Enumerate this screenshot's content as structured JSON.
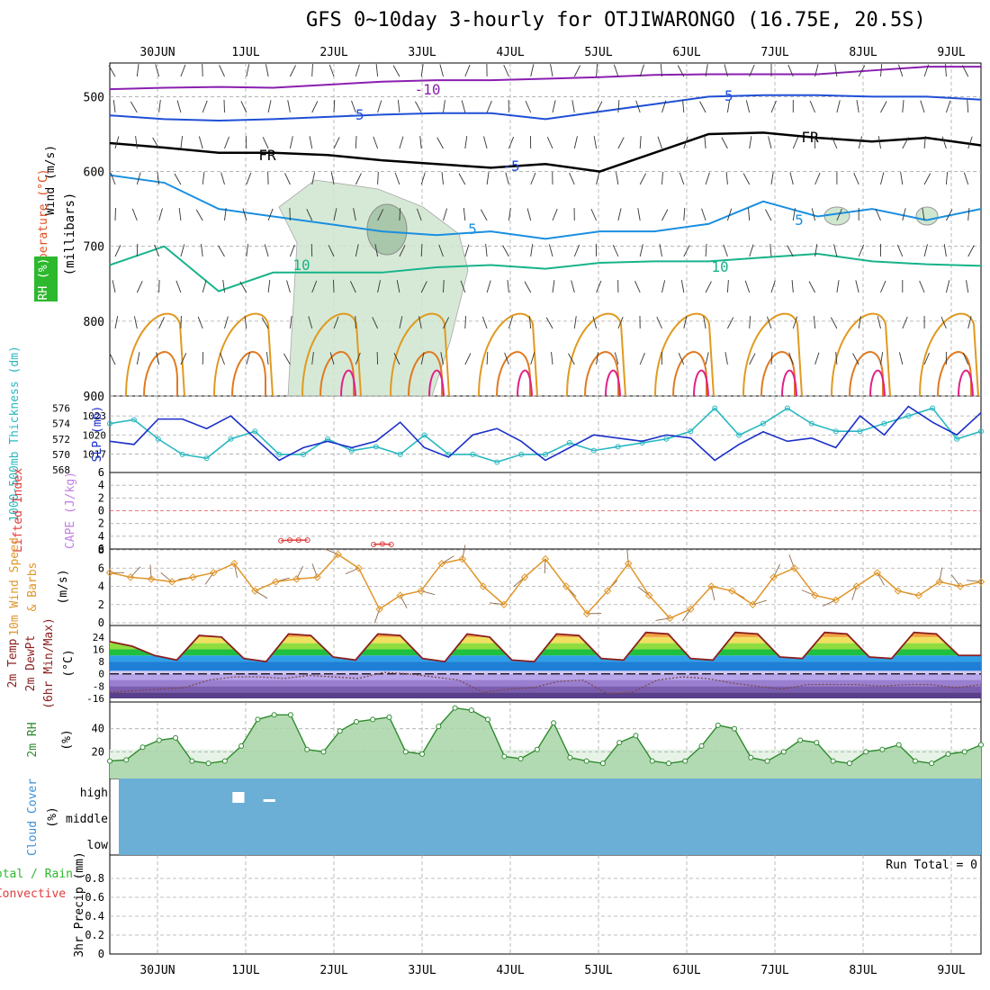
{
  "title": "GFS 0~10day 3-hourly for OTJIWARONGO (16.75E, 20.5S)",
  "date_labels": [
    "30JUN",
    "1JUL",
    "2JUL",
    "3JUL",
    "4JUL",
    "5JUL",
    "6JUL",
    "7JUL",
    "8JUL",
    "9JUL"
  ],
  "colors": {
    "grid": "#aaaaaa",
    "wind_barb": "#333333",
    "rh_fill": "#cfe6cf",
    "temp_neg10": "#8a1fb0",
    "temp_neg5": "#1f4fd6",
    "temp_fr": "#000000",
    "temp_5": "#1a8fe0",
    "temp_10": "#17b38a",
    "temp_15": "#e09a20",
    "temp_20": "#e07a20",
    "temp_25": "#e0208a",
    "slp": "#1a2fc8",
    "thickness": "#29b8c0",
    "lifted_index": "#e03c3c",
    "wind10m": "#e0962a",
    "temp2m": "#8b1f1f",
    "dewpt2m": "#7a4a4a",
    "rh2m": "#2e8b2e",
    "cloud": "#6baed6"
  },
  "chart_data": [
    {
      "type": "line",
      "panel": "upper-air",
      "ylabel": [
        "Wind (m/s)",
        "Temperature (°C)",
        "RH (%)",
        "(millibars)"
      ],
      "y_ticks": [
        500,
        600,
        700,
        800,
        900
      ],
      "ylim": [
        455,
        900
      ],
      "contour_labels": [
        "-10",
        "-5",
        "FR",
        "-5",
        "5",
        "10",
        "FR",
        "-5",
        "5",
        "10"
      ],
      "levels": [
        {
          "name": "-10",
          "series": [
            490,
            488,
            487,
            488,
            484,
            480,
            478,
            478,
            476,
            474,
            471,
            470,
            470,
            470,
            465,
            460,
            460
          ]
        },
        {
          "name": "-5",
          "series": [
            525,
            530,
            532,
            530,
            527,
            524,
            522,
            522,
            530,
            520,
            510,
            500,
            498,
            498,
            500,
            500,
            504
          ]
        },
        {
          "name": "FR",
          "series": [
            562,
            568,
            575,
            575,
            578,
            585,
            590,
            595,
            590,
            600,
            575,
            550,
            548,
            555,
            560,
            555,
            565
          ]
        },
        {
          "name": "5",
          "series": [
            605,
            615,
            650,
            660,
            670,
            680,
            685,
            680,
            690,
            680,
            680,
            670,
            640,
            660,
            650,
            665,
            650
          ]
        },
        {
          "name": "10",
          "series": [
            725,
            700,
            760,
            735,
            735,
            735,
            728,
            725,
            730,
            722,
            720,
            720,
            715,
            710,
            720,
            724,
            726
          ]
        }
      ]
    },
    {
      "type": "line",
      "panel": "slp-thickness",
      "ylabel": [
        "1000-500mb Thickness (dm)",
        "SLP (mb)"
      ],
      "thickness_ticks": [
        568,
        570,
        572,
        574,
        576
      ],
      "slp_ticks": [
        1017,
        1020,
        1023
      ],
      "series": [
        {
          "name": "SLP (mb)",
          "values": [
            1019.0,
            1018.5,
            1022.5,
            1022.5,
            1021.0,
            1023.0,
            1019.5,
            1016.0,
            1018.0,
            1019.0,
            1018.0,
            1019.0,
            1022.0,
            1018.0,
            1016.5,
            1020.0,
            1021.0,
            1019.0,
            1016.0,
            1018.0,
            1020.0,
            1019.5,
            1019.0,
            1020.0,
            1019.5,
            1016.0,
            1018.5,
            1020.5,
            1019.0,
            1019.5,
            1018.0,
            1023.0,
            1020.0,
            1024.5,
            1022.0,
            1020.0,
            1023.5
          ]
        },
        {
          "name": "1000-500mb Thickness (dm)",
          "values": [
            574.0,
            574.5,
            572.0,
            570.0,
            569.5,
            572.0,
            573.0,
            570.0,
            570.0,
            572.0,
            570.5,
            571.0,
            570.0,
            572.5,
            570.0,
            570.0,
            569.0,
            570.0,
            570.0,
            571.5,
            570.5,
            571.0,
            571.5,
            572.0,
            573.0,
            576.0,
            572.5,
            574.0,
            576.0,
            574.0,
            573.0,
            573.0,
            574.0,
            575.0,
            576.0,
            572.0,
            573.0
          ]
        }
      ]
    },
    {
      "type": "line",
      "panel": "lifted-index",
      "ylabel": [
        "Lifted Index",
        "CAPE (J/kg)"
      ],
      "y_ticks": [
        -6,
        -4,
        -2,
        0,
        2,
        4,
        6
      ],
      "ylim": [
        -6,
        6
      ],
      "series": [
        {
          "name": "Lifted Index",
          "x_days": [
            1.4,
            1.5,
            1.6,
            1.7
          ],
          "values": [
            4.7,
            4.6,
            4.6,
            4.6
          ]
        },
        {
          "name": "Lifted Index",
          "x_days": [
            2.45,
            2.55,
            2.65
          ],
          "values": [
            5.3,
            5.2,
            5.3
          ]
        }
      ]
    },
    {
      "type": "line",
      "panel": "wind-10m",
      "ylabel": [
        "10m Wind Speed",
        "& Barbs",
        "(m/s)"
      ],
      "y_ticks": [
        0,
        2,
        4,
        6,
        8
      ],
      "ylim": [
        0,
        8
      ],
      "series": [
        {
          "name": "10m Wind Speed",
          "values": [
            5.5,
            5.0,
            4.8,
            4.5,
            5.0,
            5.5,
            6.5,
            3.5,
            4.5,
            4.8,
            5.0,
            7.5,
            6.0,
            1.5,
            3.0,
            3.5,
            6.5,
            7.0,
            4.0,
            2.0,
            5.0,
            7.0,
            4.0,
            1.0,
            3.5,
            6.5,
            3.0,
            0.5,
            1.5,
            4.0,
            3.5,
            2.0,
            5.0,
            6.0,
            3.0,
            2.5,
            4.0,
            5.5,
            3.5,
            3.0,
            4.5,
            4.0,
            4.5
          ]
        }
      ]
    },
    {
      "type": "area",
      "panel": "temp-2m",
      "ylabel": [
        "2m Temp",
        "2m DewPt",
        "(6hr Min/Max)",
        "(°C)"
      ],
      "y_ticks": [
        -16,
        -8,
        0,
        8,
        16,
        24
      ],
      "ylim": [
        -16,
        28
      ],
      "series": [
        {
          "name": "2m Temp",
          "values": [
            21,
            18,
            12,
            9,
            25,
            24,
            10,
            8,
            26,
            25,
            11,
            9,
            26,
            25,
            10,
            8,
            26,
            24,
            9,
            8,
            26,
            25,
            10,
            9,
            27,
            26,
            10,
            9,
            27,
            26,
            11,
            10,
            27,
            26,
            11,
            10,
            27,
            26,
            12,
            12
          ]
        },
        {
          "name": "2m DewPt",
          "values": [
            -12,
            -11,
            -10,
            -9,
            -4,
            -2,
            -2,
            -3,
            -1,
            -2,
            -3,
            1,
            0,
            -2,
            -4,
            -12,
            -10,
            -9,
            -5,
            -4,
            -13,
            -12,
            -4,
            -2,
            -3,
            -6,
            -8,
            -10,
            -7,
            -7,
            -7,
            -8,
            -7,
            -7,
            -9,
            -7
          ]
        }
      ]
    },
    {
      "type": "area",
      "panel": "rh-2m",
      "ylabel": [
        "2m RH",
        "(%)"
      ],
      "y_ticks": [
        20,
        40
      ],
      "ylim": [
        0,
        60
      ],
      "series": [
        {
          "name": "2m RH",
          "values": [
            12,
            13,
            24,
            30,
            32,
            12,
            10,
            12,
            25,
            48,
            52,
            52,
            22,
            20,
            38,
            46,
            48,
            50,
            20,
            18,
            42,
            58,
            56,
            48,
            16,
            14,
            22,
            45,
            15,
            12,
            10,
            28,
            34,
            12,
            10,
            12,
            25,
            43,
            40,
            15,
            12,
            20,
            30,
            28,
            12,
            10,
            20,
            22,
            26,
            12,
            10,
            18,
            20,
            26
          ]
        }
      ]
    },
    {
      "type": "heatmap",
      "panel": "cloud-cover",
      "ylabel": [
        "Cloud Cover",
        "(%)"
      ],
      "y_categories": [
        "high",
        "middle",
        "low"
      ],
      "note_blocks": [
        {
          "level": "high",
          "x_days": [
            0.85,
            1.0
          ]
        },
        {
          "level": "high",
          "x_days": [
            1.2,
            1.35
          ]
        }
      ]
    },
    {
      "type": "bar",
      "panel": "precip",
      "ylabel": [
        "Total / Rain",
        "Convective",
        "3hr Precip (mm)"
      ],
      "y_ticks": [
        0,
        0.2,
        0.4,
        0.6,
        0.8
      ],
      "ylim": [
        0,
        1
      ],
      "values": [],
      "annotation": "Run Total = 0"
    }
  ]
}
